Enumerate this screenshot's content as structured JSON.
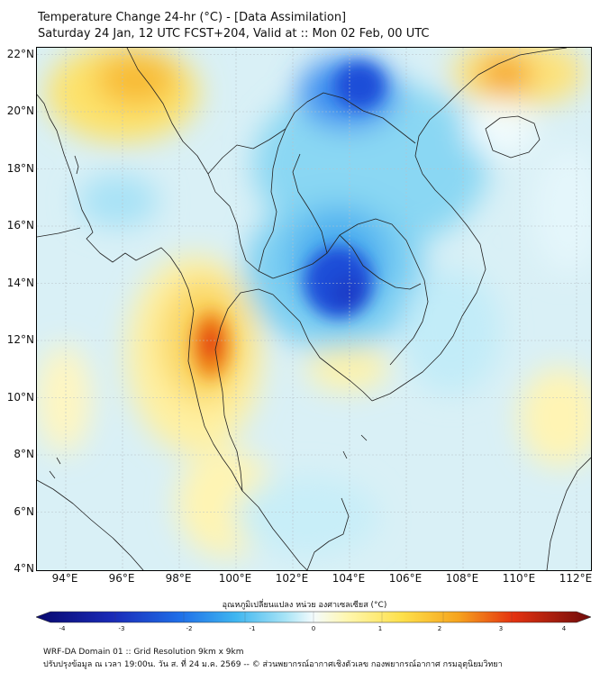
{
  "header": {
    "title_line1": "Temperature Change 24-hr (°C) - [Data Assimilation]",
    "title_line2": "Saturday 24 Jan, 12 UTC FCST+204, Valid at :: Mon 02 Feb, 00 UTC"
  },
  "map": {
    "latitude_labels": [
      "22°N",
      "20°N",
      "18°N",
      "16°N",
      "14°N",
      "12°N",
      "10°N",
      "8°N",
      "6°N",
      "4°N"
    ],
    "longitude_labels": [
      "94°E",
      "96°E",
      "98°E",
      "100°E",
      "102°E",
      "104°E",
      "106°E",
      "108°E",
      "110°E",
      "112°E"
    ]
  },
  "colorbar": {
    "title": "อุณหภูมิเปลี่ยนแปลง หน่วย องศาเซลเซียส (°C)",
    "tick_labels": [
      "-4",
      "-3",
      "-2",
      "-1",
      "0",
      "1",
      "2",
      "3",
      "4"
    ],
    "colors": {
      "dark_blue": "#08086e",
      "blue": "#1f4fd8",
      "light_blue": "#53bff0",
      "pale_cyan": "#d8f4fb",
      "pale_yellow": "#fff7b0",
      "orange": "#f6a41e",
      "red": "#e43210",
      "dark_red": "#6e0b0b"
    }
  },
  "footer": {
    "line1": "WRF-DA Domain 01 :: Grid Resolution 9km x 9km",
    "line2": "ปรับปรุงข้อมูล ณ เวลา 19:00น. วัน ส. ที่ 24 ม.ค. 2569 -- © ส่วนพยากรณ์อากาศเชิงตัวเลข กองพยากรณ์อากาศ กรมอุตุนิยมวิทยา"
  }
}
